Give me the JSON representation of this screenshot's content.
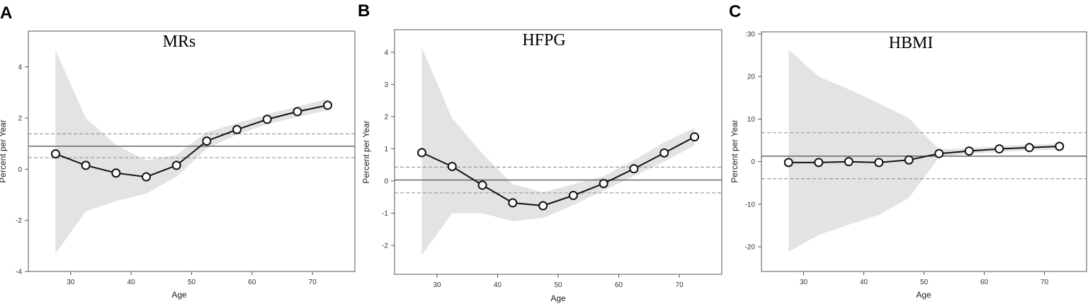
{
  "chart_data": [
    {
      "type": "line",
      "panel_label": "A",
      "title": "MRs",
      "xlabel": "Age",
      "ylabel": "Percent per Year",
      "xlim": [
        23,
        77
      ],
      "ylim": [
        -4,
        5.4
      ],
      "xticks": [
        30,
        40,
        50,
        60,
        70
      ],
      "yticks": [
        -4,
        -2,
        0,
        2,
        4
      ],
      "ytick_labels": [
        "-4",
        "-2",
        "0",
        "2",
        "4"
      ],
      "x": [
        27.5,
        32.5,
        37.5,
        42.5,
        47.5,
        52.5,
        57.5,
        62.5,
        67.5,
        72.5
      ],
      "values": [
        0.6,
        0.15,
        -0.15,
        -0.3,
        0.15,
        1.1,
        1.55,
        1.95,
        2.25,
        2.5
      ],
      "ci_lower": [
        -3.3,
        -1.65,
        -1.25,
        -0.95,
        -0.3,
        0.8,
        1.35,
        1.75,
        2.05,
        2.3
      ],
      "ci_upper": [
        4.65,
        2.0,
        0.95,
        0.35,
        0.55,
        1.45,
        1.8,
        2.15,
        2.45,
        2.75
      ],
      "hline": 0.9,
      "hline_lower": 0.45,
      "hline_upper": 1.38,
      "grid": false
    },
    {
      "type": "line",
      "panel_label": "B",
      "title": "HFPG",
      "xlabel": "Age",
      "ylabel": "Percent per Year",
      "xlim": [
        23,
        77
      ],
      "ylim": [
        -2.9,
        4.7
      ],
      "xticks": [
        30,
        40,
        50,
        60,
        70
      ],
      "yticks": [
        -2,
        -1,
        0,
        1,
        2,
        3,
        4
      ],
      "ytick_labels": [
        "-2",
        "-1",
        "0",
        "1",
        "2",
        "3",
        "4"
      ],
      "x": [
        27.5,
        32.5,
        37.5,
        42.5,
        47.5,
        52.5,
        57.5,
        62.5,
        67.5,
        72.5
      ],
      "values": [
        0.88,
        0.45,
        -0.13,
        -0.68,
        -0.77,
        -0.45,
        -0.08,
        0.38,
        0.87,
        1.37
      ],
      "ci_lower": [
        -2.3,
        -1.0,
        -1.0,
        -1.25,
        -1.15,
        -0.75,
        -0.3,
        0.15,
        0.6,
        1.1
      ],
      "ci_upper": [
        4.15,
        1.95,
        0.85,
        -0.1,
        -0.35,
        -0.1,
        0.15,
        0.65,
        1.2,
        1.65
      ],
      "hline": 0.03,
      "hline_lower": -0.37,
      "hline_upper": 0.43,
      "grid": false
    },
    {
      "type": "line",
      "panel_label": "C",
      "title": "HBMI",
      "xlabel": "Age",
      "ylabel": "Percent per Year",
      "xlim": [
        23,
        77
      ],
      "ylim": [
        -25.8,
        30.5
      ],
      "xticks": [
        30,
        40,
        50,
        60,
        70
      ],
      "yticks": [
        -20,
        -10,
        0,
        10,
        20,
        30
      ],
      "ytick_labels": [
        "-20",
        "-10",
        "0",
        "10",
        "20",
        ":30"
      ],
      "x": [
        27.5,
        32.5,
        37.5,
        42.5,
        47.5,
        52.5,
        57.5,
        62.5,
        67.5,
        72.5
      ],
      "values": [
        -0.2,
        -0.2,
        0.0,
        -0.2,
        0.4,
        1.9,
        2.5,
        3.0,
        3.3,
        3.6
      ],
      "ci_lower": [
        -21.2,
        -17.2,
        -14.8,
        -12.5,
        -8.5,
        1.0,
        1.8,
        2.3,
        2.6,
        2.9
      ],
      "ci_upper": [
        26.3,
        20.0,
        17.0,
        13.7,
        10.2,
        2.8,
        3.2,
        3.7,
        4.0,
        4.3
      ],
      "hline": 1.3,
      "hline_lower": -4.0,
      "hline_upper": 6.8,
      "grid": false
    }
  ]
}
